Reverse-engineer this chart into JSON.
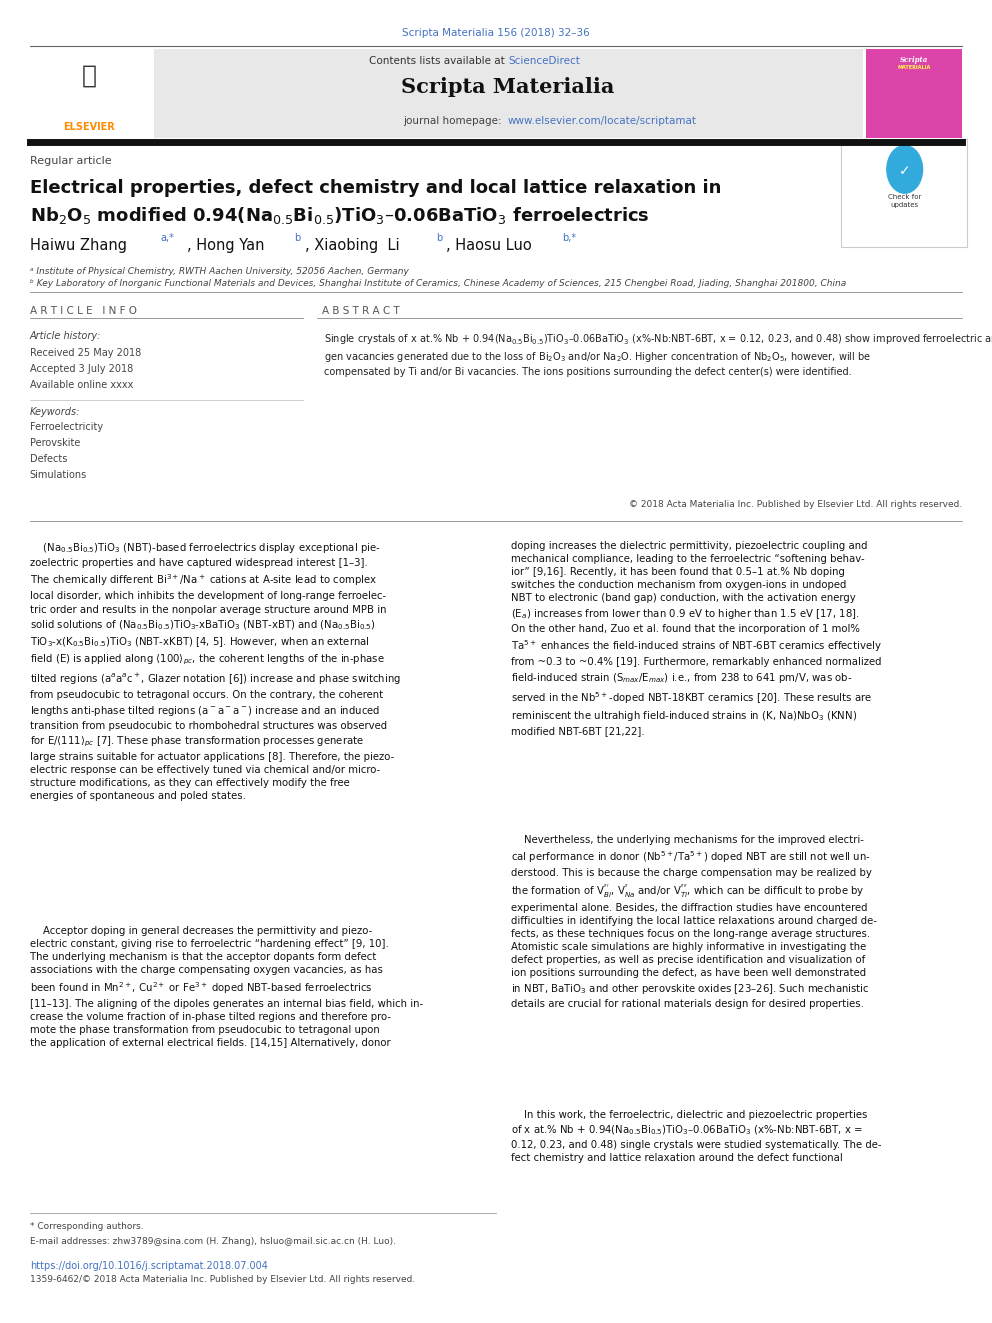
{
  "page_width": 9.92,
  "page_height": 13.23,
  "background_color": "#ffffff",
  "top_citation": "Scripta Materialia 156 (2018) 32–36",
  "top_citation_color": "#4472c4",
  "journal_name": "Scripta Materialia",
  "sciencedirect_color": "#4472c4",
  "homepage_url_color": "#4472c4",
  "header_bg_color": "#e8e8e8",
  "article_type": "Regular article",
  "title_line1": "Electrical properties, defect chemistry and local lattice relaxation in",
  "title_line2": "Nb$_2$O$_5$ modified 0.94(Na$_{0.5}$Bi$_{0.5}$)TiO$_3$–0.06BaTiO$_3$ ferroelectrics",
  "article_history_label": "Article history:",
  "received": "Received 25 May 2018",
  "accepted": "Accepted 3 July 2018",
  "available": "Available online xxxx",
  "keywords_label": "Keywords:",
  "keywords": [
    "Ferroelectricity",
    "Perovskite",
    "Defects",
    "Simulations"
  ],
  "doi_color": "#4472c4",
  "footer_doi": "https://doi.org/10.1016/j.scriptamat.2018.07.004",
  "footer_issn": "1359-6462/© 2018 Acta Materialia Inc. Published by Elsevier Ltd. All rights reserved."
}
